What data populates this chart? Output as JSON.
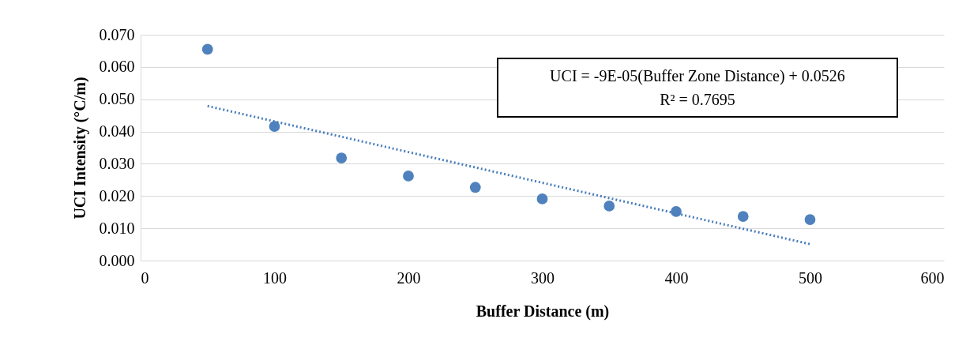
{
  "chart_data": {
    "type": "scatter",
    "xlabel": "Buffer Distance (m)",
    "ylabel": "UCI Intensity (°C/m)",
    "xlim": [
      0,
      600
    ],
    "xticks": [
      0,
      100,
      200,
      300,
      400,
      500,
      600
    ],
    "ylim": [
      0,
      0.07
    ],
    "yticks": [
      {
        "value": 0,
        "label": "0.000"
      },
      {
        "value": 0.01,
        "label": "0.010"
      },
      {
        "value": 0.02,
        "label": "0.020"
      },
      {
        "value": 0.03,
        "label": "0.030"
      },
      {
        "value": 0.04,
        "label": "0.040"
      },
      {
        "value": 0.05,
        "label": "0.050"
      },
      {
        "value": 0.06,
        "label": "0.060"
      },
      {
        "value": 0.07,
        "label": "0.070"
      }
    ],
    "grid": "y",
    "annotations": [
      "UCI = -9E-05(Buffer Zone Distance) + 0.0526",
      "R² = 0.7695"
    ],
    "series": [
      {
        "color": "#4e81bd",
        "marker": "circle",
        "x": [
          50,
          100,
          150,
          200,
          250,
          300,
          350,
          400,
          450,
          500
        ],
        "values": [
          0.0655,
          0.0416,
          0.0318,
          0.0262,
          0.0227,
          0.0191,
          0.0169,
          0.0152,
          0.0137,
          0.0127
        ]
      },
      {
        "type": "line",
        "color": "#4a7ebb",
        "line_style": "dotted",
        "marker": "none",
        "x": [
          50,
          500
        ],
        "values": [
          0.0479,
          0.0051
        ]
      }
    ]
  }
}
